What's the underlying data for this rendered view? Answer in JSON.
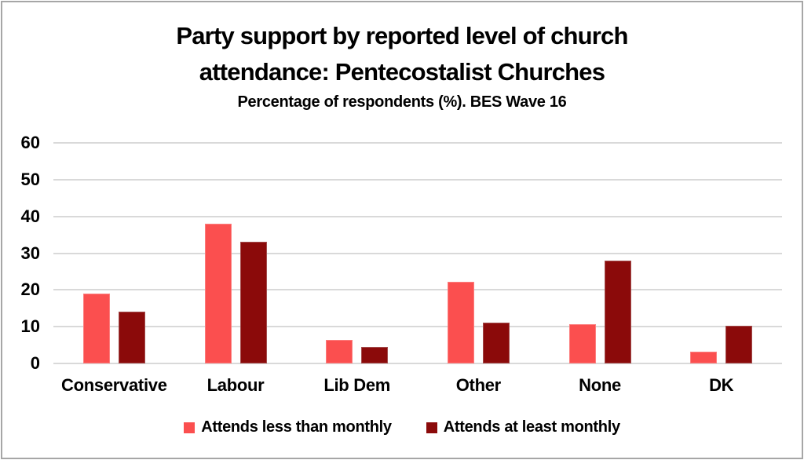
{
  "chart_data": {
    "type": "bar",
    "title": "Party support by reported level of church attendance: Pentecostalist Churches",
    "subtitle": "Percentage of respondents (%). BES Wave 16",
    "categories": [
      "Conservative",
      "Labour",
      "Lib Dem",
      "Other",
      "None",
      "DK"
    ],
    "series": [
      {
        "name": "Attends less than monthly",
        "color": "#FB4F4F",
        "border_color": "#FC7E7E",
        "values": [
          19,
          38,
          6.5,
          22.3,
          10.7,
          3.3
        ]
      },
      {
        "name": "Attends at least monthly",
        "color": "#8B0A0A",
        "border_color": "#A34C4C",
        "values": [
          14,
          33,
          4.5,
          11,
          28,
          10.2
        ]
      }
    ],
    "xlabel": "",
    "ylabel": "",
    "ylim": [
      0,
      60
    ],
    "yticks": [
      0,
      10,
      20,
      30,
      40,
      50,
      60
    ],
    "grid": true,
    "legend_position": "bottom"
  },
  "colors": {
    "gridline": "#D9D9D9",
    "frame_border": "#A6A6A6",
    "background": "#FFFFFF",
    "text": "#000000"
  }
}
